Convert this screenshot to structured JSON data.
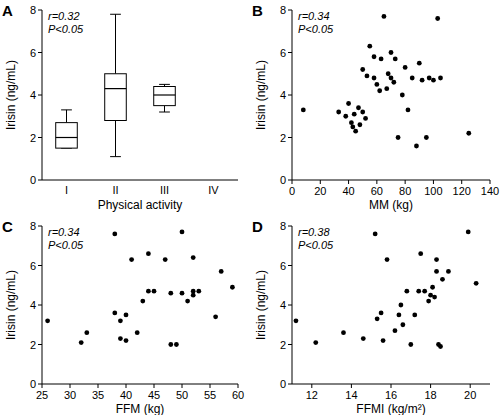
{
  "chart_data": [
    {
      "type": "box",
      "title": "A",
      "x_label": "Physical activity",
      "y_label": "Irisin (ng/mL)",
      "annotations": [
        "r=0.32",
        "P<0.05"
      ],
      "categories": [
        "I",
        "II",
        "III",
        "IV"
      ],
      "min": [
        1.5,
        1.1,
        3.2,
        null
      ],
      "q1": [
        1.5,
        2.8,
        3.5,
        null
      ],
      "median": [
        2.0,
        4.3,
        4.0,
        null
      ],
      "q3": [
        2.7,
        5.0,
        4.4,
        null
      ],
      "max": [
        3.3,
        7.8,
        4.5,
        null
      ],
      "ylim": [
        0,
        8
      ],
      "yticks": [
        0,
        2,
        4,
        6,
        8
      ],
      "color": "#000000"
    },
    {
      "type": "scatter",
      "title": "B",
      "x_label": "MM (kg)",
      "y_label": "Irisin (ng/mL)",
      "annotations": [
        "r=0.34",
        "P<0.05"
      ],
      "x": [
        8,
        33,
        38,
        40,
        42,
        43,
        44,
        45,
        47,
        48,
        50,
        50,
        52,
        53,
        55,
        58,
        58,
        60,
        62,
        63,
        65,
        67,
        68,
        70,
        70,
        72,
        73,
        75,
        78,
        80,
        82,
        85,
        88,
        90,
        92,
        95,
        97,
        100,
        103,
        105,
        125
      ],
      "values": [
        3.3,
        3.2,
        3.0,
        3.6,
        2.7,
        2.5,
        3.1,
        2.3,
        3.4,
        2.6,
        3.2,
        5.2,
        2.9,
        4.9,
        6.3,
        5.8,
        4.8,
        4.5,
        4.2,
        5.7,
        7.7,
        4.3,
        5.0,
        4.8,
        6.0,
        4.6,
        5.7,
        2.0,
        4.0,
        5.3,
        3.3,
        4.8,
        1.6,
        5.5,
        4.7,
        2.0,
        4.8,
        4.7,
        7.6,
        4.8,
        2.2
      ],
      "xlim": [
        0,
        140
      ],
      "xticks": [
        0,
        20,
        40,
        60,
        80,
        100,
        120,
        140
      ],
      "ylim": [
        0,
        8
      ],
      "yticks": [
        0,
        2,
        4,
        6,
        8
      ],
      "color": "#000000",
      "marker": "circle"
    },
    {
      "type": "scatter",
      "title": "C",
      "x_label": "FFM (kg)",
      "y_label": "Irisin (ng/mL)",
      "annotations": [
        "r=0.34",
        "P<0.05"
      ],
      "x": [
        26,
        32,
        33,
        38,
        38,
        39,
        39,
        40,
        40,
        41,
        42,
        43,
        44,
        44,
        45,
        47,
        48,
        48,
        49,
        50,
        50,
        51,
        52,
        52,
        52,
        53,
        56,
        57,
        59
      ],
      "values": [
        3.2,
        2.1,
        2.6,
        7.6,
        3.6,
        3.2,
        2.3,
        3.5,
        2.2,
        6.3,
        2.6,
        4.2,
        6.6,
        4.7,
        4.7,
        6.3,
        2.0,
        4.6,
        2.0,
        7.7,
        4.6,
        4.2,
        4.7,
        4.5,
        6.4,
        4.7,
        3.4,
        5.7,
        4.9
      ],
      "xlim": [
        25,
        60
      ],
      "xticks": [
        25,
        30,
        35,
        40,
        45,
        50,
        55,
        60
      ],
      "ylim": [
        0,
        8
      ],
      "yticks": [
        0,
        2,
        4,
        6,
        8
      ],
      "color": "#000000",
      "marker": "circle"
    },
    {
      "type": "scatter",
      "title": "D",
      "x_label": "FFMI (kg/m²)",
      "y_label": "Irisin (ng/mL)",
      "annotations": [
        "r=0.38",
        "P<0.05"
      ],
      "x": [
        11.2,
        12.2,
        13.6,
        14.6,
        15.2,
        15.3,
        15.5,
        15.6,
        15.8,
        16.2,
        16.4,
        16.5,
        16.6,
        16.8,
        17.0,
        17.2,
        17.4,
        17.5,
        17.7,
        17.9,
        18.0,
        18.1,
        18.2,
        18.3,
        18.3,
        18.4,
        18.5,
        18.6,
        18.9,
        19.9,
        20.3
      ],
      "values": [
        3.2,
        2.1,
        2.6,
        2.3,
        7.6,
        3.3,
        3.6,
        2.2,
        6.3,
        2.7,
        3.5,
        4.0,
        3.0,
        4.7,
        2.0,
        3.5,
        4.7,
        6.6,
        4.7,
        4.2,
        4.5,
        4.9,
        4.4,
        5.7,
        6.3,
        2.0,
        1.9,
        5.3,
        5.7,
        7.7,
        5.1
      ],
      "xlim": [
        11,
        21
      ],
      "xticks": [
        12,
        14,
        16,
        18,
        20
      ],
      "ylim": [
        0,
        8
      ],
      "yticks": [
        0,
        2,
        4,
        6,
        8
      ],
      "color": "#000000",
      "marker": "circle"
    }
  ]
}
